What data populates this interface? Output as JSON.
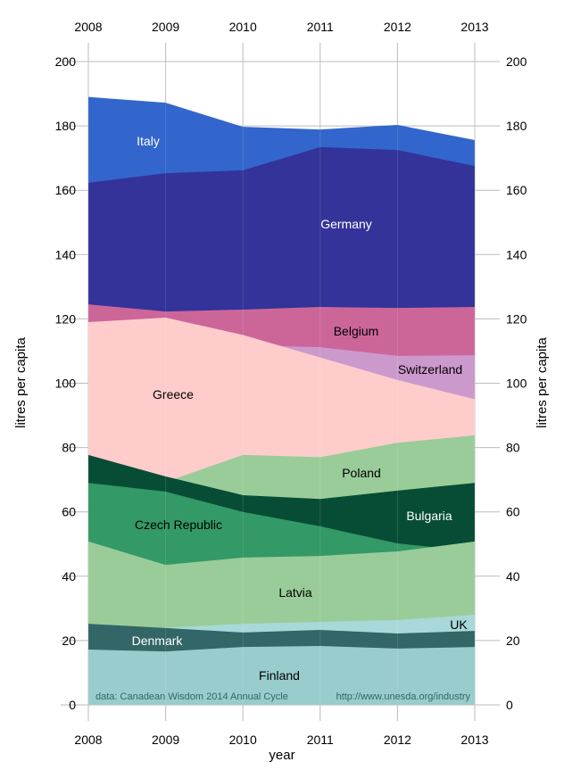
{
  "chart_data": {
    "type": "area",
    "title": "",
    "xlabel": "year",
    "ylabel": "litres per capita",
    "ylabel_right": "litres per capita",
    "ylim": [
      0,
      200
    ],
    "yticks": [
      0,
      20,
      40,
      60,
      80,
      100,
      120,
      140,
      160,
      180,
      200
    ],
    "x": [
      2008,
      2009,
      2010,
      2011,
      2012,
      2013
    ],
    "grid": true,
    "note_left": "data: Canadean Wisdom 2014 Annual Cycle",
    "note_right": "http://www.unesda.org/industry",
    "series": [
      {
        "name": "Italy",
        "color": "#3366cc",
        "label_color": "#ffffff",
        "values": [
          189,
          187.2,
          179.7,
          178.9,
          180.3,
          175.6
        ]
      },
      {
        "name": "Germany",
        "color": "#333399",
        "label_color": "#ffffff",
        "values": [
          162.3,
          165.3,
          166.2,
          173.4,
          172.5,
          167.5
        ]
      },
      {
        "name": "Belgium",
        "color": "#cc6699",
        "label_color": "#000000",
        "values": [
          124.5,
          122.3,
          122.9,
          123.7,
          123.4,
          123.7
        ]
      },
      {
        "name": "Switzerland",
        "color": "#cc99cc",
        "label_color": "#000000",
        "values": [
          115,
          113.7,
          111.8,
          111.2,
          108.5,
          108.7
        ]
      },
      {
        "name": "Greece",
        "color": "#ffcccc",
        "label_color": "#000000",
        "values": [
          119,
          120.4,
          115,
          108,
          101,
          95
        ]
      },
      {
        "name": "Poland",
        "color": "#99cc99",
        "label_color": "#000000",
        "values": [
          64.6,
          69.3,
          77.7,
          77,
          81.5,
          83.8
        ]
      },
      {
        "name": "Bulgaria",
        "color": "#074d35",
        "label_color": "#ffffff",
        "values": [
          77.7,
          71,
          65.2,
          64,
          66.6,
          69
        ]
      },
      {
        "name": "Czech Republic",
        "color": "#339966",
        "label_color": "#000000",
        "values": [
          69,
          66.3,
          60,
          55.5,
          50.2,
          47.7
        ]
      },
      {
        "name": "Latvia",
        "color": "#99cc99",
        "label_color": "#000000",
        "values": [
          50.8,
          43.5,
          45.8,
          46.3,
          47.7,
          50.8
        ]
      },
      {
        "name": "UK",
        "color": "#a8d8d8",
        "label_color": "#000000",
        "values": [
          24.4,
          24,
          25.2,
          25.8,
          26.4,
          28
        ]
      },
      {
        "name": "Denmark",
        "color": "#336666",
        "label_color": "#ffffff",
        "values": [
          25.2,
          23.9,
          22.5,
          23.3,
          22.2,
          23
        ]
      },
      {
        "name": "Finland",
        "color": "#99cccc",
        "label_color": "#000000",
        "values": [
          17.2,
          16.6,
          18,
          18.3,
          17.5,
          18
        ]
      }
    ]
  }
}
